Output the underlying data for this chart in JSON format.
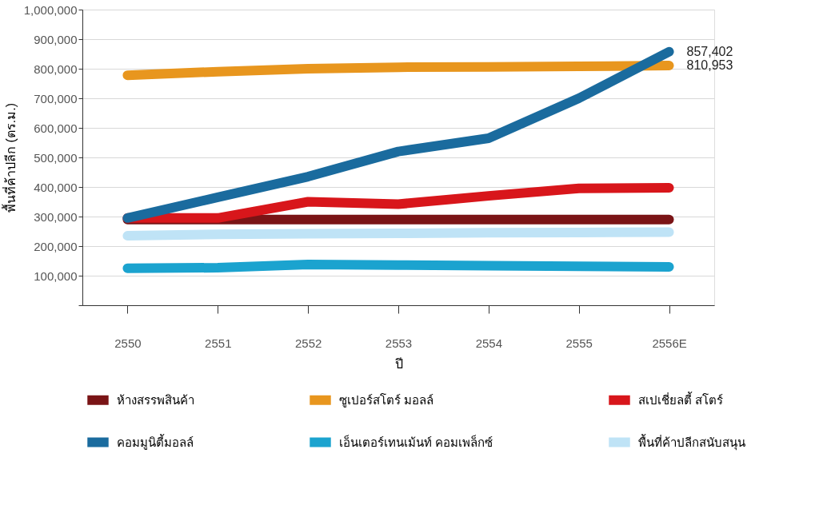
{
  "chart_data": {
    "type": "line",
    "xlabel": "ปี",
    "ylabel": "พื้นที่ค้าปลีก (ตร.ม.)",
    "categories": [
      "2550",
      "2551",
      "2552",
      "2553",
      "2554",
      "2555",
      "2556E"
    ],
    "ylim": [
      0,
      1000000
    ],
    "yticks": [
      {
        "value": 0,
        "label": null
      },
      {
        "value": 100000,
        "label": "100,000"
      },
      {
        "value": 200000,
        "label": "200,000"
      },
      {
        "value": 300000,
        "label": "300,000"
      },
      {
        "value": 400000,
        "label": "400,000"
      },
      {
        "value": 500000,
        "label": "500,000"
      },
      {
        "value": 600000,
        "label": "600,000"
      },
      {
        "value": 700000,
        "label": "700,000"
      },
      {
        "value": 800000,
        "label": "800,000"
      },
      {
        "value": 900000,
        "label": "900,000"
      },
      {
        "value": 1000000,
        "label": "1,000,000"
      }
    ],
    "grid": "y",
    "legend": "bottom",
    "line_style": "solid",
    "series": [
      {
        "name": "ห้างสรรพสินค้า",
        "color": "#7a1416",
        "values": [
          290000,
          290000,
          290000,
          290000,
          290000,
          290000,
          290000
        ]
      },
      {
        "name": "ซูเปอร์สโตร์ มอลล์",
        "color": "#e8961e",
        "values": [
          778000,
          790000,
          800000,
          805000,
          806000,
          808000,
          810953
        ]
      },
      {
        "name": "สเปเชี่ยลตี้ สโตร์",
        "color": "#d8161b",
        "values": [
          295000,
          295000,
          350000,
          342000,
          370000,
          395000,
          397000
        ]
      },
      {
        "name": "คอมมูนิตี้มอลล์",
        "color": "#1a6b9e",
        "values": [
          295000,
          365000,
          435000,
          520000,
          565000,
          700000,
          857402
        ]
      },
      {
        "name": "เอ็นเตอร์เทนเม้นท์ คอมเพล็กซ์",
        "color": "#1ba3cf",
        "values": [
          125000,
          127000,
          138000,
          136000,
          134000,
          132000,
          130000
        ]
      },
      {
        "name": "พื้นที่ค้าปลีกสนับสนุน",
        "color": "#bfe3f6",
        "values": [
          235000,
          240000,
          242000,
          243000,
          245000,
          246000,
          247000
        ]
      }
    ],
    "annotations": [
      {
        "text": "857,402",
        "x": "2556E",
        "y": 857402
      },
      {
        "text": "810,953",
        "x": "2556E",
        "y": 810953
      }
    ]
  }
}
